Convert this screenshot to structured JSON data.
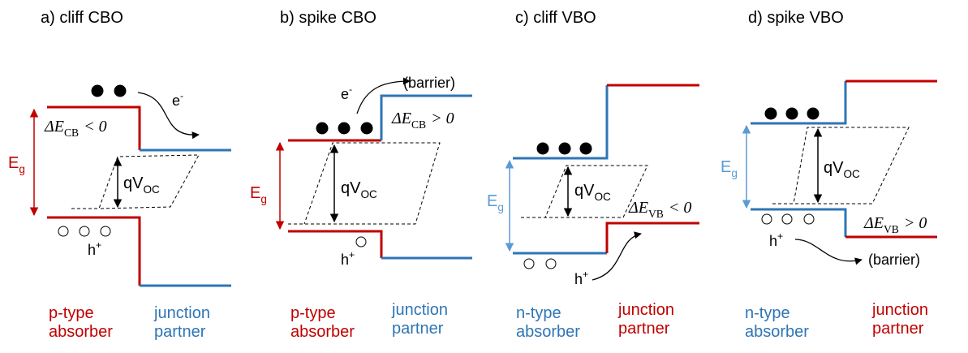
{
  "panels": [
    {
      "title": "a) cliff CBO",
      "band_gap": {
        "symbol": "E",
        "subscript": "g"
      },
      "voltage": {
        "symbol": "qV",
        "subscript": "OC"
      },
      "offset": {
        "symbol": "ΔE",
        "subscript": "CB",
        "relation": "< 0"
      },
      "electron": {
        "symbol": "e",
        "superscript": "-"
      },
      "hole": {
        "symbol": "h",
        "superscript": "+"
      },
      "absorber": [
        "p-type",
        "absorber"
      ],
      "partner": [
        "junction",
        "partner"
      ]
    },
    {
      "title": "b) spike CBO",
      "band_gap": {
        "symbol": "E",
        "subscript": "g"
      },
      "voltage": {
        "symbol": "qV",
        "subscript": "OC"
      },
      "offset": {
        "symbol": "ΔE",
        "subscript": "CB",
        "relation": "> 0"
      },
      "electron": {
        "symbol": "e",
        "superscript": "-"
      },
      "hole": {
        "symbol": "h",
        "superscript": "+"
      },
      "barrier": "(barrier)",
      "absorber": [
        "p-type",
        "absorber"
      ],
      "partner": [
        "junction",
        "partner"
      ]
    },
    {
      "title": "c) cliff VBO",
      "band_gap": {
        "symbol": "E",
        "subscript": "g"
      },
      "voltage": {
        "symbol": "qV",
        "subscript": "OC"
      },
      "offset": {
        "symbol": "ΔE",
        "subscript": "VB",
        "relation": "< 0"
      },
      "hole": {
        "symbol": "h",
        "superscript": "+"
      },
      "absorber": [
        "n-type",
        "absorber"
      ],
      "partner": [
        "junction",
        "partner"
      ]
    },
    {
      "title": "d) spike VBO",
      "band_gap": {
        "symbol": "E",
        "subscript": "g"
      },
      "voltage": {
        "symbol": "qV",
        "subscript": "OC"
      },
      "offset": {
        "symbol": "ΔE",
        "subscript": "VB",
        "relation": "> 0"
      },
      "hole": {
        "symbol": "h",
        "superscript": "+"
      },
      "barrier": "(barrier)",
      "absorber": [
        "n-type",
        "absorber"
      ],
      "partner": [
        "junction",
        "partner"
      ]
    }
  ]
}
